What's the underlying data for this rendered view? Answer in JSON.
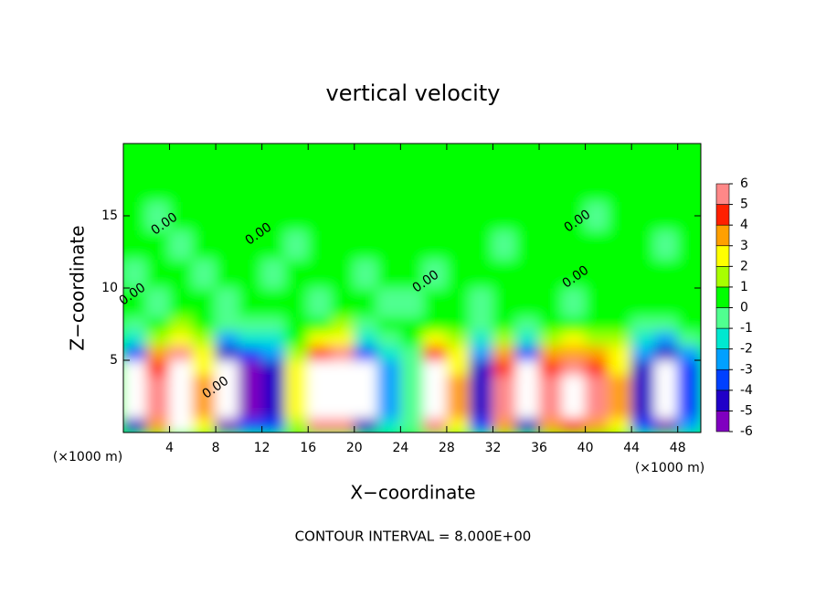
{
  "chart_data": {
    "type": "filled-contour",
    "title": "vertical velocity",
    "x_label": "X−coordinate",
    "y_label": "Z−coordinate",
    "x_unit": "(×1000 m)",
    "y_unit": "(×1000 m)",
    "footnote": "CONTOUR INTERVAL = 8.000E+00",
    "contour_labels": [
      "0.00",
      "0.00",
      "0.00",
      "0.00",
      "0.00",
      "0.00",
      "0.00"
    ],
    "xlim": [
      0,
      50
    ],
    "xticks": [
      4,
      8,
      12,
      16,
      20,
      24,
      28,
      32,
      36,
      40,
      44,
      48
    ],
    "ylim": [
      0,
      20
    ],
    "yticks": [
      5,
      10,
      15
    ],
    "colorbar": {
      "levels": [
        -6,
        -5,
        -4,
        -3,
        -2,
        -1,
        0,
        1,
        2,
        3,
        4,
        5,
        6
      ],
      "colors": [
        "#8000c0",
        "#2000c8",
        "#0040ff",
        "#00a0ff",
        "#00e8d0",
        "#50ff90",
        "#00ff00",
        "#a8ff00",
        "#ffff00",
        "#ffa000",
        "#ff2000",
        "#ff8888"
      ],
      "over_color": "#ffffff",
      "under_color": "#ffffff"
    },
    "field": {
      "x_edges": [
        0,
        2,
        4,
        6,
        8,
        10,
        12,
        14,
        16,
        18,
        20,
        22,
        24,
        26,
        28,
        30,
        32,
        34,
        36,
        38,
        40,
        42,
        44,
        46,
        48,
        50
      ],
      "z_edges": [
        0,
        1,
        2,
        3,
        4,
        5,
        6,
        7,
        8,
        10,
        12,
        14,
        16,
        18,
        20
      ],
      "values": [
        [
          -5,
          3.5,
          6.5,
          2,
          -5.5,
          -4,
          -3.5,
          1.5,
          5,
          5.5,
          -5,
          -2,
          -0.5,
          5,
          2,
          -3.5,
          3.5,
          -5,
          3.5,
          4,
          3.5,
          2,
          -3.5,
          -5.5,
          -3
        ],
        [
          -7,
          5,
          9,
          3,
          -8,
          -6,
          -5,
          2,
          7,
          8,
          -7,
          -3,
          -1,
          7,
          3,
          -5,
          5,
          -7,
          5,
          6,
          5,
          3,
          -5,
          -8,
          -4
        ],
        [
          -7,
          5,
          9,
          3,
          -8,
          -6,
          -5,
          2,
          7,
          8,
          -7,
          -3,
          -1,
          7,
          3,
          -5,
          5,
          -7,
          5,
          6,
          5,
          3,
          -5,
          -8,
          -4
        ],
        [
          -7,
          5,
          9,
          3,
          -8,
          -6,
          -5,
          2,
          7,
          8,
          -7,
          -3,
          -1,
          7,
          3,
          -5,
          5,
          -7,
          5,
          6,
          5,
          3,
          -5,
          -8,
          -4
        ],
        [
          -6.5,
          4.5,
          8,
          2.5,
          -7,
          -5.5,
          -4.5,
          2,
          6.5,
          7,
          -6.5,
          -2.5,
          -1,
          6.5,
          2.5,
          -4.5,
          4.5,
          -6.5,
          4.5,
          5.5,
          4.5,
          2.5,
          -4.5,
          -7,
          -3.5
        ],
        [
          -4,
          3,
          5.5,
          2,
          -5,
          -3.5,
          -3,
          1,
          4,
          5,
          -4,
          -2,
          -0.5,
          4,
          2,
          -3,
          3,
          -4,
          3,
          3.5,
          3,
          2,
          -3,
          -5,
          -2.5
        ],
        [
          -2,
          1.5,
          2.5,
          1,
          -2.5,
          -2,
          -1.5,
          0.5,
          2,
          2.5,
          -2,
          -1,
          0,
          2,
          1,
          -1.5,
          1.5,
          -2,
          1.5,
          2,
          1.5,
          1,
          -1.5,
          -2.5,
          -1
        ],
        [
          -0.5,
          0.5,
          1,
          0.5,
          -1,
          -0.5,
          -0.5,
          0.5,
          0.5,
          1,
          -0.5,
          0,
          0,
          0.5,
          0.5,
          -0.5,
          0.5,
          -0.5,
          0.5,
          0.5,
          0.5,
          0.5,
          -0.5,
          -1,
          0
        ],
        [
          0.5,
          -0.5,
          0.5,
          0.5,
          -0.5,
          0.5,
          0.5,
          0.5,
          -0.5,
          0.5,
          0.5,
          -0.5,
          -0.5,
          0.5,
          0.5,
          -0.5,
          0.5,
          0.5,
          0.5,
          -0.5,
          0.5,
          0.5,
          0.5,
          0.5,
          0.5
        ],
        [
          -0.5,
          0.5,
          0.5,
          -0.5,
          0.5,
          0.5,
          -0.5,
          0.5,
          0.5,
          0.5,
          -0.5,
          0.5,
          0.5,
          -0.5,
          0.5,
          0.5,
          0.5,
          0.5,
          0.5,
          0.5,
          0.5,
          0.5,
          0.5,
          0.5,
          0.5
        ],
        [
          0.5,
          0.5,
          -0.5,
          0.5,
          0.5,
          0.5,
          0.5,
          -0.5,
          0.5,
          0.5,
          0.5,
          0.5,
          0.5,
          0.5,
          0.5,
          0.5,
          -0.5,
          0.5,
          0.5,
          0.5,
          0.5,
          0.5,
          0.5,
          -0.5,
          0.5
        ],
        [
          0.5,
          -0.5,
          0.5,
          0.5,
          0.5,
          0.5,
          0.5,
          0.5,
          0.5,
          0.5,
          0.5,
          0.5,
          0.5,
          0.5,
          0.5,
          0.5,
          0.5,
          0.5,
          0.5,
          0.5,
          -0.5,
          0.5,
          0.5,
          0.5,
          0.5
        ],
        [
          0.5,
          0.5,
          0.5,
          0.5,
          0.5,
          0.5,
          0.5,
          0.5,
          0.5,
          0.5,
          0.5,
          0.5,
          0.5,
          0.5,
          0.5,
          0.5,
          0.5,
          0.5,
          0.5,
          0.5,
          0.5,
          0.5,
          0.5,
          0.5,
          0.5
        ],
        [
          0.5,
          0.5,
          0.5,
          0.5,
          0.5,
          0.5,
          0.5,
          0.5,
          0.5,
          0.5,
          0.5,
          0.5,
          0.5,
          0.5,
          0.5,
          0.5,
          0.5,
          0.5,
          0.5,
          0.5,
          0.5,
          0.5,
          0.5,
          0.5,
          0.5
        ]
      ]
    }
  }
}
